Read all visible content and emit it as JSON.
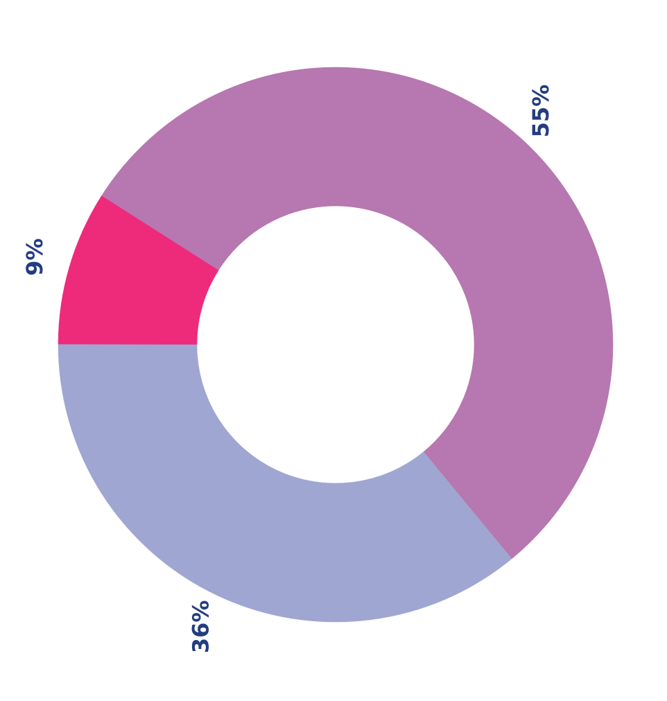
{
  "chart_data": {
    "type": "donut",
    "values": [
      36,
      9,
      55
    ],
    "value_labels": [
      "36%",
      "9%",
      "55%"
    ],
    "colors": [
      "#9fa6d1",
      "#ee2a7b",
      "#b777b0"
    ]
  }
}
